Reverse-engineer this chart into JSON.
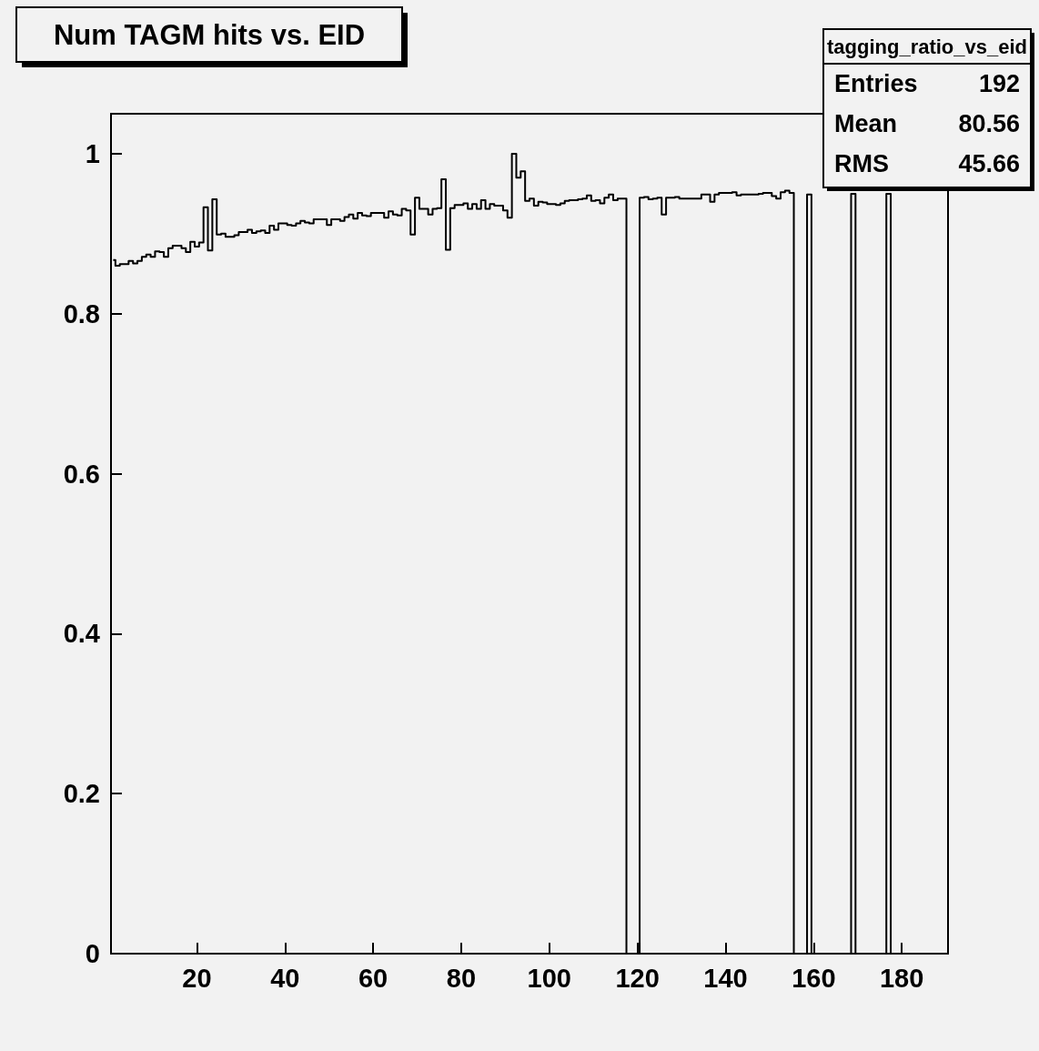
{
  "chart_data": {
    "type": "step",
    "title": "Num TAGM hits vs. EID",
    "color": "#000000",
    "x": [
      1,
      2,
      3,
      4,
      5,
      6,
      7,
      8,
      9,
      10,
      11,
      12,
      13,
      14,
      15,
      16,
      17,
      18,
      19,
      20,
      21,
      22,
      23,
      24,
      25,
      26,
      27,
      28,
      29,
      30,
      31,
      32,
      33,
      34,
      35,
      36,
      37,
      38,
      39,
      40,
      41,
      42,
      43,
      44,
      45,
      46,
      47,
      48,
      49,
      50,
      51,
      52,
      53,
      54,
      55,
      56,
      57,
      58,
      59,
      60,
      61,
      62,
      63,
      64,
      65,
      66,
      67,
      68,
      69,
      70,
      71,
      72,
      73,
      74,
      75,
      76,
      77,
      78,
      79,
      80,
      81,
      82,
      83,
      84,
      85,
      86,
      87,
      88,
      89,
      90,
      91,
      92,
      93,
      94,
      95,
      96,
      97,
      98,
      99,
      100,
      101,
      102,
      103,
      104,
      105,
      106,
      107,
      108,
      109,
      110,
      111,
      112,
      113,
      114,
      115,
      116,
      117,
      118,
      119,
      120,
      121,
      122,
      123,
      124,
      125,
      126,
      127,
      128,
      129,
      130,
      131,
      132,
      133,
      134,
      135,
      136,
      137,
      138,
      139,
      140,
      141,
      142,
      143,
      144,
      145,
      146,
      147,
      148,
      149,
      150,
      151,
      152,
      153,
      154,
      155,
      156,
      157,
      158,
      159,
      160,
      161,
      162,
      163,
      164,
      165,
      166,
      167,
      168,
      169,
      170,
      171,
      172,
      173,
      174,
      175,
      176,
      177,
      178,
      179,
      180,
      181,
      182,
      183,
      184,
      185,
      186,
      187,
      188,
      189,
      190
    ],
    "values": [
      0.867,
      0.86,
      0.862,
      0.862,
      0.866,
      0.863,
      0.866,
      0.871,
      0.874,
      0.871,
      0.878,
      0.877,
      0.871,
      0.882,
      0.885,
      0.885,
      0.882,
      0.877,
      0.89,
      0.884,
      0.889,
      0.933,
      0.879,
      0.943,
      0.899,
      0.9,
      0.896,
      0.896,
      0.898,
      0.902,
      0.902,
      0.905,
      0.901,
      0.903,
      0.904,
      0.901,
      0.91,
      0.905,
      0.913,
      0.913,
      0.911,
      0.91,
      0.913,
      0.916,
      0.914,
      0.913,
      0.918,
      0.918,
      0.918,
      0.911,
      0.918,
      0.918,
      0.916,
      0.921,
      0.924,
      0.919,
      0.926,
      0.923,
      0.922,
      0.926,
      0.926,
      0.926,
      0.92,
      0.928,
      0.924,
      0.923,
      0.931,
      0.929,
      0.899,
      0.945,
      0.931,
      0.931,
      0.924,
      0.931,
      0.932,
      0.968,
      0.88,
      0.932,
      0.936,
      0.936,
      0.938,
      0.931,
      0.937,
      0.931,
      0.942,
      0.931,
      0.937,
      0.935,
      0.935,
      0.929,
      0.92,
      1.0,
      0.97,
      0.978,
      0.941,
      0.944,
      0.935,
      0.94,
      0.939,
      0.937,
      0.937,
      0.936,
      0.938,
      0.941,
      0.942,
      0.942,
      0.943,
      0.944,
      0.948,
      0.941,
      0.942,
      0.938,
      0.945,
      0.949,
      0.942,
      0.944,
      0.944,
      0,
      0,
      0,
      0.945,
      0.946,
      0.943,
      0.944,
      0.945,
      0.924,
      0.945,
      0.945,
      0.946,
      0.944,
      0.944,
      0.944,
      0.944,
      0.944,
      0.949,
      0.949,
      0.94,
      0.949,
      0.951,
      0.951,
      0.951,
      0.952,
      0.948,
      0.949,
      0.949,
      0.949,
      0.949,
      0.95,
      0.951,
      0.951,
      0.947,
      0.944,
      0.952,
      0.954,
      0.951,
      0,
      0,
      0,
      0.949,
      0,
      0,
      0,
      0,
      0,
      0,
      0,
      0,
      0,
      0.95,
      0,
      0,
      0,
      0,
      0,
      0,
      0,
      0.95,
      0,
      0,
      0,
      0,
      0,
      0,
      0,
      0,
      0,
      0,
      0,
      0,
      0
    ],
    "xlim": [
      0.5,
      190.5
    ],
    "xticks": [
      20,
      40,
      60,
      80,
      100,
      120,
      140,
      160,
      180
    ],
    "ylim": [
      0,
      1.05
    ],
    "yticks": [
      0,
      0.2,
      0.4,
      0.6,
      0.8,
      1
    ],
    "grid": false,
    "annotations": [
      "tagging_ratio_vs_eid",
      "Entries 192",
      "Mean 80.56",
      "RMS 45.66"
    ]
  }
}
